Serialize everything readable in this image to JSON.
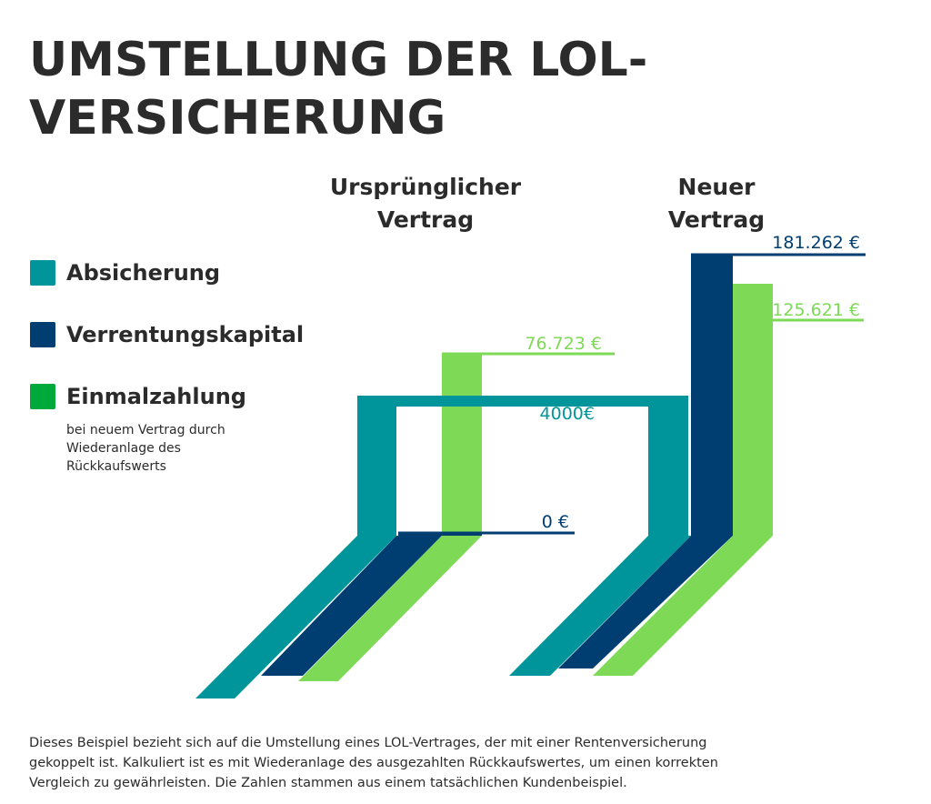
{
  "title": "UMSTELLUNG DER LOL-VERSICHERUNG",
  "columns": {
    "original": "Ursprünglicher Vertrag",
    "new": "Neuer Vertrag"
  },
  "legend": {
    "items": [
      {
        "label": "Absicherung",
        "color": "#00959A"
      },
      {
        "label": "Verrentungskapital",
        "color": "#003E71"
      },
      {
        "label": "Einmalzahlung",
        "color": "#00AA3A"
      }
    ],
    "note": "bei neuem Vertrag durch Wiederanlage des Rückkaufswerts"
  },
  "chart_data": {
    "type": "bar",
    "categories": [
      "Ursprünglicher Vertrag",
      "Neuer Vertrag"
    ],
    "series": [
      {
        "name": "Absicherung",
        "values": [
          4000,
          4000
        ],
        "color": "#00959A"
      },
      {
        "name": "Verrentungskapital",
        "values": [
          0,
          181262
        ],
        "color": "#003E71"
      },
      {
        "name": "Einmalzahlung",
        "values": [
          76723,
          125621
        ],
        "color": "#7ED957"
      }
    ],
    "labels": {
      "absicherung": "4000€",
      "verrentung_original": "0 €",
      "einmal_original": "76.723 €",
      "verrentung_new": "181.262 €",
      "einmal_new": "125.621 €"
    },
    "label_colors": {
      "absicherung": "#00959A",
      "verrentung": "#003E71",
      "einmal": "#7ED957"
    }
  },
  "footnote": "Dieses Beispiel bezieht sich auf die Umstellung eines LOL-Vertrages, der mit einer Rentenversicherung gekoppelt ist. Kalkuliert ist es mit Wiederanlage des ausgezahlten Rückkaufswertes, um einen korrekten Vergleich zu gewährleisten. Die Zahlen stammen aus einem tatsächlichen Kundenbeispiel."
}
